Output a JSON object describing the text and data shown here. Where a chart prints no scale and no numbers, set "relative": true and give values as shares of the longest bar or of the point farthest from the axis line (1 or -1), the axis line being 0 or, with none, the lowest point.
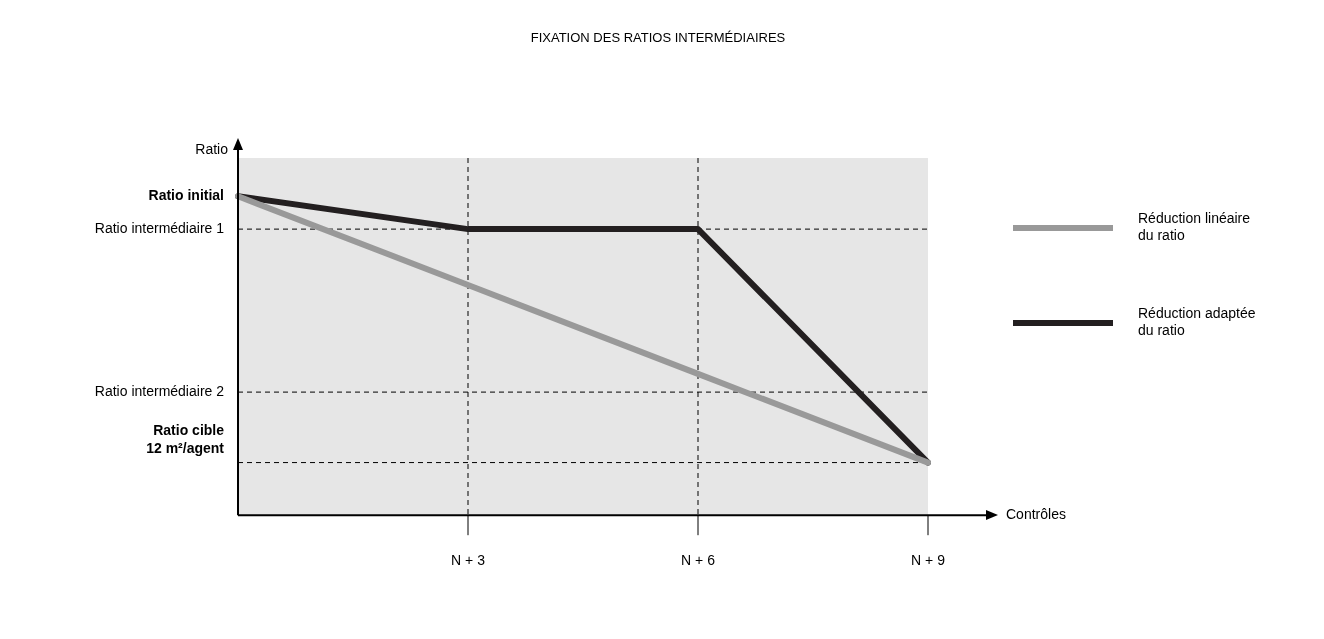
{
  "chart_data": {
    "type": "line",
    "title": "FIXATION DES RATIOS INTERMÉDIAIRES",
    "xlabel": "Contrôles",
    "ylabel": "Ratio",
    "relative": true,
    "categories": [
      null,
      "N + 3",
      "N + 6",
      "N + 9"
    ],
    "series": [
      {
        "name": "Réduction linéaire du ratio",
        "color": "#999999",
        "values": [
          1,
          0.722,
          0.443,
          0.165
        ]
      },
      {
        "name": "Réduction adaptée du ratio",
        "color": "#231f20",
        "values": [
          1,
          0.897,
          0.897,
          0.165
        ]
      }
    ],
    "ref_lines": [
      {
        "axis": "y",
        "value": 0.897,
        "label": "Ratio intermédiaire 1",
        "line_style": "dashed"
      },
      {
        "axis": "y",
        "value": 0.386,
        "label": "Ratio intermédiaire 2",
        "line_style": "dashed"
      },
      {
        "axis": "y",
        "value": 0.165,
        "label": "Ratio cible\n12 m²/agent",
        "line_style": "dashed"
      },
      {
        "axis": "x",
        "value": "N + 3",
        "line_style": "dashed"
      },
      {
        "axis": "x",
        "value": "N + 6",
        "line_style": "dashed"
      }
    ],
    "annotations": [
      "Ratio initial"
    ],
    "legend": "right",
    "grid": false,
    "marker": "none",
    "line_style": "solid"
  }
}
